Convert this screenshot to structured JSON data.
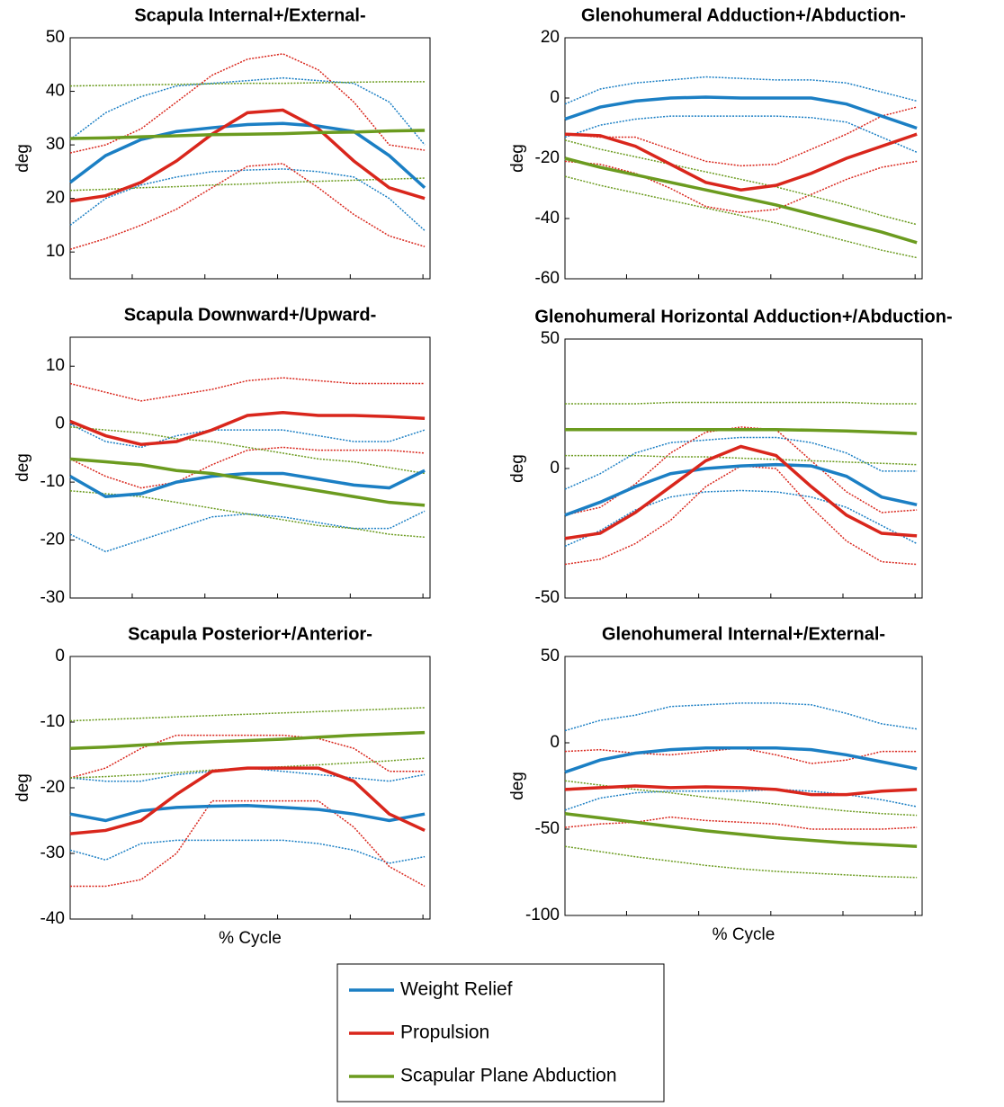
{
  "chart_data": [
    {
      "type": "line",
      "title": "Scapula Internal+/External-",
      "ylabel": "deg",
      "x": [
        0,
        10,
        20,
        30,
        40,
        50,
        60,
        70,
        80,
        90,
        100
      ],
      "xlim": [
        0,
        101.5
      ],
      "xticks": [
        17.5,
        38,
        58.5,
        79,
        99.5
      ],
      "ylim": [
        5,
        50
      ],
      "yticks": [
        10,
        20,
        30,
        40,
        50
      ],
      "series": [
        {
          "values": [
            23,
            28,
            31,
            32.5,
            33.2,
            33.8,
            34,
            33.5,
            32.5,
            28,
            22
          ],
          "upper": [
            31,
            36,
            39,
            41,
            41.5,
            42,
            42.5,
            42,
            41.5,
            38,
            30
          ],
          "lower": [
            15,
            20,
            22.5,
            24,
            25,
            25.3,
            25.5,
            25,
            24,
            20,
            14
          ]
        },
        {
          "values": [
            19.5,
            20.5,
            23,
            27,
            32,
            36,
            36.5,
            33,
            27,
            22,
            20
          ],
          "upper": [
            28.5,
            30,
            33,
            38,
            43,
            46,
            47,
            44,
            38,
            30,
            29
          ],
          "lower": [
            10.5,
            12.5,
            15,
            18,
            22,
            26,
            26.5,
            22,
            17,
            13,
            11
          ]
        },
        {
          "values": [
            31.2,
            31.3,
            31.5,
            31.7,
            31.9,
            32,
            32.1,
            32.3,
            32.4,
            32.6,
            32.7
          ],
          "upper": [
            41,
            41.1,
            41.2,
            41.3,
            41.4,
            41.5,
            41.5,
            41.6,
            41.7,
            41.8,
            41.8
          ],
          "lower": [
            21.5,
            21.7,
            22,
            22.2,
            22.5,
            22.7,
            23,
            23.2,
            23.4,
            23.6,
            23.8
          ]
        }
      ]
    },
    {
      "type": "line",
      "title": "Glenohumeral Adduction+/Abduction-",
      "ylabel": "deg",
      "x": [
        0,
        10,
        20,
        30,
        40,
        50,
        60,
        70,
        80,
        90,
        100
      ],
      "xlim": [
        0,
        101.5
      ],
      "xticks": [
        17.5,
        38,
        58.5,
        79,
        99.5
      ],
      "ylim": [
        -60,
        20
      ],
      "yticks": [
        -60,
        -40,
        -20,
        0,
        20
      ],
      "series": [
        {
          "values": [
            -7,
            -3,
            -1,
            0,
            0.3,
            0,
            0,
            0,
            -2,
            -6,
            -10
          ],
          "upper": [
            -2,
            3,
            5,
            6,
            7,
            6.5,
            6,
            6,
            5,
            2,
            -1
          ],
          "lower": [
            -13,
            -9,
            -7,
            -6,
            -6,
            -6,
            -6,
            -6.5,
            -8,
            -13,
            -18
          ]
        },
        {
          "values": [
            -12,
            -12.5,
            -16,
            -22,
            -28,
            -30.5,
            -29,
            -25,
            -20,
            -16,
            -12
          ],
          "upper": [
            -12,
            -13,
            -13,
            -17,
            -21,
            -22.5,
            -22,
            -17,
            -12,
            -6,
            -3
          ],
          "lower": [
            -21,
            -22,
            -25,
            -30,
            -36,
            -38,
            -37,
            -32,
            -27,
            -23,
            -21
          ]
        },
        {
          "values": [
            -20,
            -23,
            -25.5,
            -28,
            -30.5,
            -33,
            -35.5,
            -38.5,
            -41.5,
            -44.5,
            -48
          ],
          "upper": [
            -14,
            -17,
            -19.5,
            -22,
            -24.5,
            -27,
            -29.5,
            -32.5,
            -35.5,
            -39,
            -42
          ],
          "lower": [
            -26,
            -29,
            -31.5,
            -34,
            -36.5,
            -39,
            -41.5,
            -44.5,
            -47.5,
            -50.5,
            -53
          ]
        }
      ]
    },
    {
      "type": "line",
      "title": "Scapula Downward+/Upward-",
      "ylabel": "deg",
      "x": [
        0,
        10,
        20,
        30,
        40,
        50,
        60,
        70,
        80,
        90,
        100
      ],
      "xlim": [
        0,
        101.5
      ],
      "xticks": [
        17.5,
        38,
        58.5,
        79,
        99.5
      ],
      "ylim": [
        -30,
        15
      ],
      "yticks": [
        -30,
        -20,
        -10,
        0,
        10
      ],
      "series": [
        {
          "values": [
            -9,
            -12.5,
            -12,
            -10,
            -9,
            -8.5,
            -8.5,
            -9.5,
            -10.5,
            -11,
            -8
          ],
          "upper": [
            0,
            -3,
            -4,
            -2,
            -1,
            -1,
            -1,
            -2,
            -3,
            -3,
            -1
          ],
          "lower": [
            -19,
            -22,
            -20,
            -18,
            -16,
            -15.5,
            -16,
            -17,
            -18,
            -18,
            -15
          ]
        },
        {
          "values": [
            0.5,
            -2,
            -3.5,
            -3,
            -1,
            1.5,
            2,
            1.5,
            1.5,
            1.3,
            1
          ],
          "upper": [
            7,
            5.5,
            4,
            5,
            6,
            7.5,
            8,
            7.5,
            7,
            7,
            7
          ],
          "lower": [
            -6,
            -9,
            -11,
            -10,
            -7,
            -4.5,
            -4,
            -4.5,
            -4.5,
            -4.5,
            -5
          ]
        },
        {
          "values": [
            -6,
            -6.5,
            -7,
            -8,
            -8.5,
            -9.5,
            -10.5,
            -11.5,
            -12.5,
            -13.5,
            -14
          ],
          "upper": [
            -0.5,
            -1,
            -1.5,
            -2.5,
            -3,
            -4,
            -5,
            -6,
            -6.5,
            -7.5,
            -8.5
          ],
          "lower": [
            -11.5,
            -12,
            -12.5,
            -13.5,
            -14.5,
            -15.5,
            -16.5,
            -17.5,
            -18,
            -19,
            -19.5
          ]
        }
      ]
    },
    {
      "type": "line",
      "title": "Glenohumeral Horizontal Adduction+/Abduction-",
      "ylabel": "deg",
      "x": [
        0,
        10,
        20,
        30,
        40,
        50,
        60,
        70,
        80,
        90,
        100
      ],
      "xlim": [
        0,
        101.5
      ],
      "xticks": [
        17.5,
        38,
        58.5,
        79,
        99.5
      ],
      "ylim": [
        -50,
        50
      ],
      "yticks": [
        -50,
        0,
        50
      ],
      "series": [
        {
          "values": [
            -18,
            -13,
            -7,
            -2,
            0,
            1,
            1.5,
            1,
            -3,
            -11,
            -14
          ],
          "upper": [
            -8,
            -2,
            6,
            10,
            11,
            12,
            12,
            10,
            6,
            -1,
            -1
          ],
          "lower": [
            -30,
            -24,
            -16,
            -11,
            -9,
            -8.5,
            -9,
            -11,
            -15,
            -22,
            -29
          ]
        },
        {
          "values": [
            -27,
            -25,
            -17,
            -7,
            3,
            8.5,
            5,
            -7,
            -18,
            -25,
            -26
          ],
          "upper": [
            -18,
            -15,
            -6,
            6,
            14,
            16,
            15,
            3,
            -9,
            -17,
            -16
          ],
          "lower": [
            -37,
            -35,
            -29,
            -20,
            -7,
            1,
            0,
            -15,
            -28,
            -36,
            -37
          ]
        },
        {
          "values": [
            15,
            15,
            15,
            15,
            15,
            15,
            15,
            14.8,
            14.5,
            14,
            13.5
          ],
          "upper": [
            25,
            25,
            25,
            25.5,
            25.5,
            25.5,
            25.5,
            25.5,
            25.5,
            25,
            25
          ],
          "lower": [
            5,
            5,
            5,
            4.5,
            4.5,
            4,
            3.5,
            3,
            2.5,
            2,
            1.5
          ]
        }
      ]
    },
    {
      "type": "line",
      "title": "Scapula Posterior+/Anterior-",
      "ylabel": "deg",
      "xlabel": "% Cycle",
      "x": [
        0,
        10,
        20,
        30,
        40,
        50,
        60,
        70,
        80,
        90,
        100
      ],
      "xlim": [
        0,
        101.5
      ],
      "xticks": [
        17.5,
        38,
        58.5,
        79,
        99.5
      ],
      "ylim": [
        -40,
        0
      ],
      "yticks": [
        -40,
        -30,
        -20,
        -10,
        0
      ],
      "series": [
        {
          "values": [
            -24,
            -25,
            -23.5,
            -23,
            -22.8,
            -22.7,
            -23,
            -23.3,
            -24,
            -25,
            -24
          ],
          "upper": [
            -18.5,
            -19,
            -19,
            -18,
            -17.5,
            -17,
            -17.5,
            -18,
            -18.5,
            -19,
            -18
          ],
          "lower": [
            -29.5,
            -31,
            -28.5,
            -28,
            -28,
            -28,
            -28,
            -28.5,
            -29.5,
            -31.5,
            -30.5
          ]
        },
        {
          "values": [
            -27,
            -26.5,
            -25,
            -21,
            -17.5,
            -17,
            -17,
            -17,
            -19,
            -24,
            -26.5
          ],
          "upper": [
            -18.5,
            -17,
            -14,
            -12,
            -12,
            -12,
            -12,
            -12.5,
            -14,
            -17.5,
            -17.5
          ],
          "lower": [
            -35,
            -35,
            -34,
            -30,
            -22,
            -22,
            -22,
            -22,
            -26,
            -32,
            -35
          ]
        },
        {
          "values": [
            -14,
            -13.8,
            -13.5,
            -13.2,
            -13,
            -12.8,
            -12.6,
            -12.3,
            -12,
            -11.8,
            -11.6
          ],
          "upper": [
            -9.8,
            -9.6,
            -9.4,
            -9.2,
            -9,
            -8.8,
            -8.6,
            -8.4,
            -8.2,
            -8,
            -7.8
          ],
          "lower": [
            -18.5,
            -18.3,
            -18,
            -17.7,
            -17.3,
            -17,
            -16.8,
            -16.5,
            -16.2,
            -15.9,
            -15.5
          ]
        }
      ]
    },
    {
      "type": "line",
      "title": "Glenohumeral Internal+/External-",
      "ylabel": "deg",
      "xlabel": "% Cycle",
      "x": [
        0,
        10,
        20,
        30,
        40,
        50,
        60,
        70,
        80,
        90,
        100
      ],
      "xlim": [
        0,
        101.5
      ],
      "xticks": [
        17.5,
        38,
        58.5,
        79,
        99.5
      ],
      "ylim": [
        -100,
        50
      ],
      "yticks": [
        -100,
        -50,
        0,
        50
      ],
      "series": [
        {
          "values": [
            -17,
            -10,
            -6,
            -4,
            -3,
            -3,
            -3,
            -4,
            -7,
            -11,
            -15
          ],
          "upper": [
            7,
            13,
            16,
            21,
            22,
            23,
            23,
            22,
            17,
            11,
            8
          ],
          "lower": [
            -39,
            -32,
            -29,
            -28,
            -28,
            -28,
            -27,
            -28,
            -30,
            -33,
            -37
          ]
        },
        {
          "values": [
            -27,
            -26,
            -25,
            -26,
            -25.5,
            -26,
            -27,
            -30,
            -30,
            -28,
            -27
          ],
          "upper": [
            -5,
            -4,
            -6,
            -7,
            -5,
            -3,
            -7,
            -12,
            -10,
            -5,
            -5
          ],
          "lower": [
            -49,
            -47,
            -46,
            -43,
            -45,
            -46,
            -47,
            -50,
            -50,
            -50,
            -49
          ]
        },
        {
          "values": [
            -41,
            -43.5,
            -46,
            -48.5,
            -51,
            -53,
            -55,
            -56.5,
            -58,
            -59,
            -60
          ],
          "upper": [
            -22,
            -24.5,
            -27,
            -29,
            -31.5,
            -33.5,
            -35.5,
            -37.5,
            -39.5,
            -41,
            -42
          ],
          "lower": [
            -60,
            -63,
            -66,
            -68.5,
            -71,
            -73,
            -74.5,
            -75.5,
            -76.5,
            -77.5,
            -78
          ]
        }
      ]
    }
  ],
  "legend": [
    {
      "name": "Weight Relief",
      "color": "#1b7fc4"
    },
    {
      "name": "Propulsion",
      "color": "#d9261c"
    },
    {
      "name": "Scapular Plane Abduction",
      "color": "#6b9b1f"
    }
  ]
}
